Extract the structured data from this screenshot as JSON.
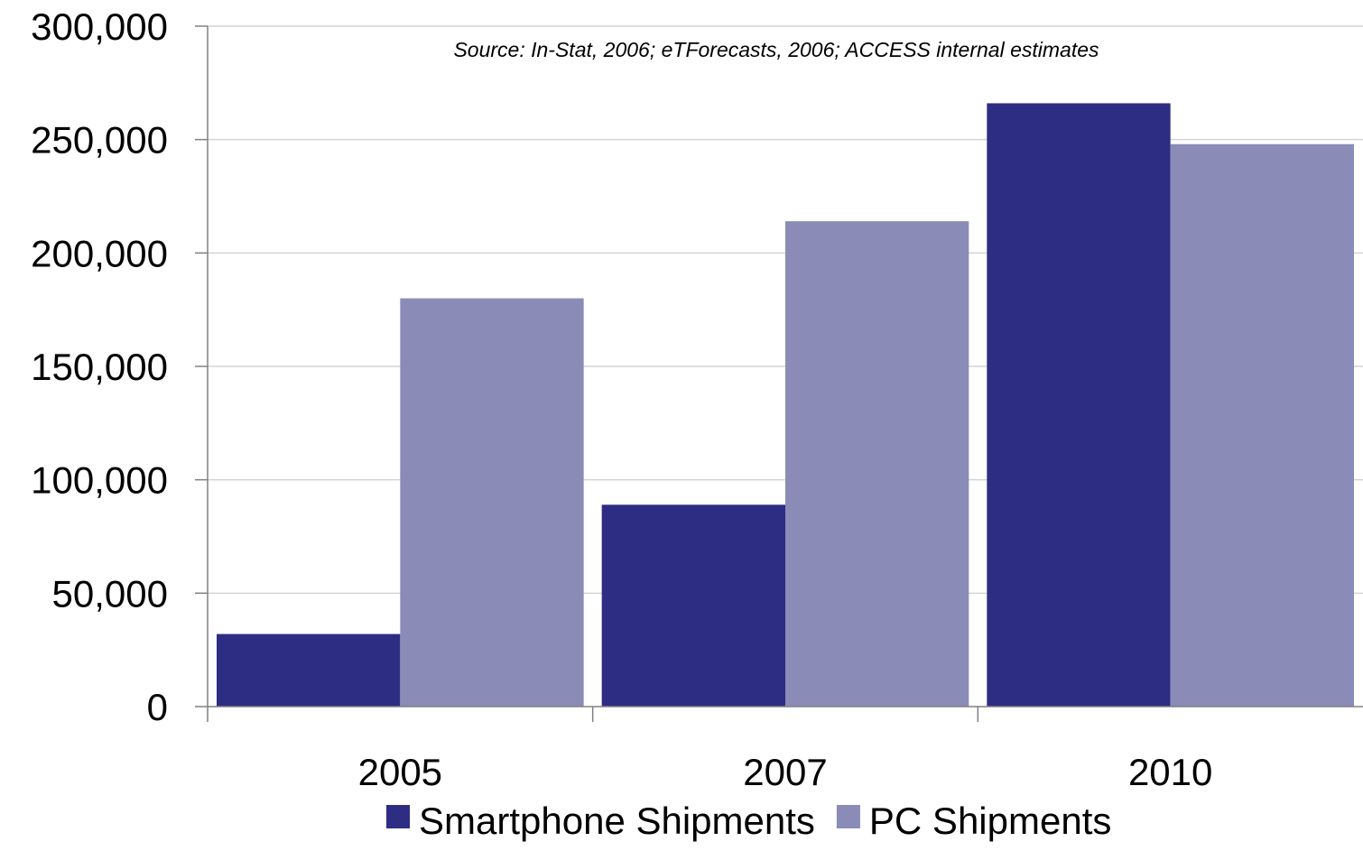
{
  "chart_data": {
    "type": "bar",
    "title": "",
    "xlabel": "",
    "ylabel": "",
    "ylim": [
      0,
      300000
    ],
    "yticks": [
      0,
      50000,
      100000,
      150000,
      200000,
      250000,
      300000
    ],
    "ytick_labels": [
      "0",
      "50,000",
      "100,000",
      "150,000",
      "200,000",
      "250,000",
      "300,000"
    ],
    "categories": [
      "2005",
      "2007",
      "2010"
    ],
    "series": [
      {
        "name": "Smartphone Shipments",
        "color": "#2e2d84",
        "values": [
          32000,
          89000,
          266000
        ]
      },
      {
        "name": "PC Shipments",
        "color": "#8b8bb8",
        "values": [
          180000,
          214000,
          248000
        ]
      }
    ],
    "grid": true,
    "legend_position": "bottom",
    "annotation": "Source: In-Stat, 2006; eTForecasts, 2006; ACCESS internal estimates"
  }
}
